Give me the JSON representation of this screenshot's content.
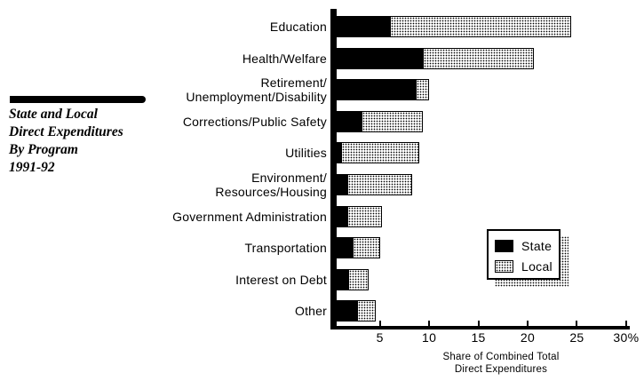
{
  "title_block": {
    "lines": [
      "State and Local",
      "Direct Expenditures",
      "By Program",
      "1991-92"
    ]
  },
  "chart_data": {
    "type": "bar",
    "orientation": "horizontal",
    "stacked": true,
    "title": "State and Local Direct Expenditures By Program 1991-92",
    "xlabel_lines": [
      "Share of Combined Total",
      "Direct Expenditures"
    ],
    "unit": "percent of combined total direct expenditures",
    "xlim": [
      0,
      30
    ],
    "x_ticks": [
      5,
      10,
      15,
      20,
      25,
      30
    ],
    "x_tick_labels": [
      "5",
      "10",
      "15",
      "20",
      "25",
      "30%"
    ],
    "grid": false,
    "legend_position": "inside-right",
    "categories": [
      "Education",
      "Health/Welfare",
      "Retirement/Unemployment/Disability",
      "Corrections/Public Safety",
      "Utilities",
      "Environment/Resources/Housing",
      "Government Administration",
      "Transportation",
      "Interest on Debt",
      "Other"
    ],
    "category_label_lines": [
      [
        "Education"
      ],
      [
        "Health/Welfare"
      ],
      [
        "Retirement/",
        "Unemployment/Disability"
      ],
      [
        "Corrections/Public Safety"
      ],
      [
        "Utilities"
      ],
      [
        "Environment/",
        "Resources/Housing"
      ],
      [
        "Government Administration"
      ],
      [
        "Transportation"
      ],
      [
        "Interest on Debt"
      ],
      [
        "Other"
      ]
    ],
    "series": [
      {
        "name": "State",
        "style": "solid-black",
        "values": [
          6.0,
          9.4,
          8.6,
          3.1,
          1.1,
          1.7,
          1.7,
          2.2,
          1.8,
          2.7
        ]
      },
      {
        "name": "Local",
        "style": "stipple-dots",
        "values": [
          18.4,
          11.2,
          1.4,
          6.3,
          7.9,
          6.6,
          3.5,
          2.8,
          2.1,
          1.9
        ]
      }
    ]
  },
  "colors": {
    "foreground": "#000000",
    "background": "#ffffff"
  }
}
